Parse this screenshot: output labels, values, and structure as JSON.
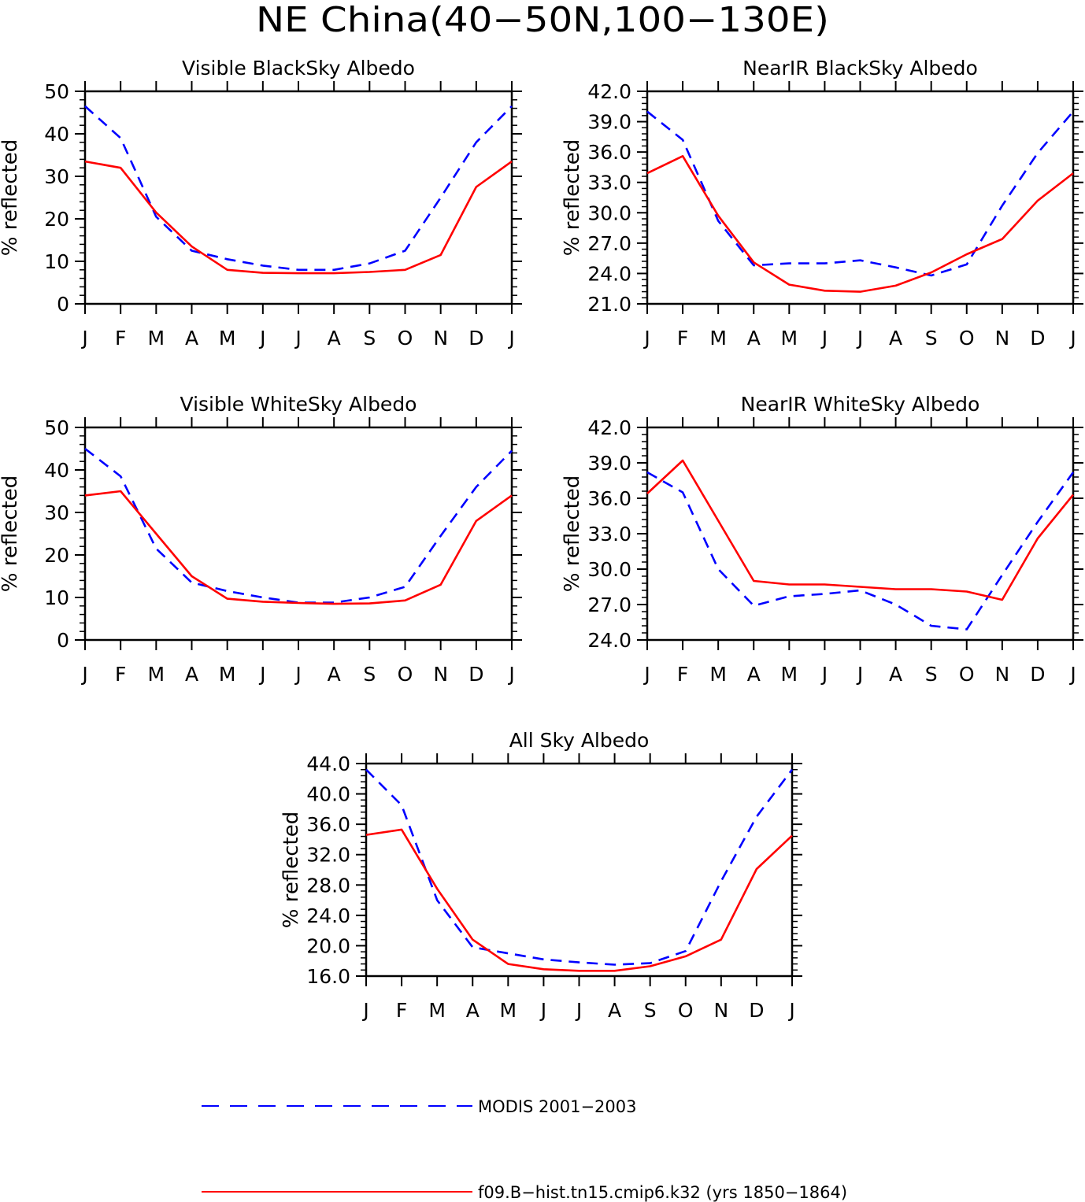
{
  "figure": {
    "title": "NE China(40−50N,100−130E)"
  },
  "colors": {
    "modis": "#0000ff",
    "model": "#ff0000",
    "axis": "#000000"
  },
  "legend": {
    "placement": "bottom",
    "items": [
      {
        "label": "MODIS 2001−2003",
        "style": "dashed",
        "color": "#0000ff"
      },
      {
        "label": "f09.B−hist.tn15.cmip6.k32 (yrs 1850−1864)",
        "style": "solid",
        "color": "#ff0000"
      }
    ]
  },
  "chart_data": [
    {
      "type": "line",
      "title": "Visible BlackSky Albedo",
      "ylabel": "% reflected",
      "categories": [
        "J",
        "F",
        "M",
        "A",
        "M",
        "J",
        "J",
        "A",
        "S",
        "O",
        "N",
        "D",
        "J"
      ],
      "ylim": [
        0,
        50
      ],
      "yticks": [
        "0",
        "10",
        "20",
        "30",
        "40",
        "50"
      ],
      "series": [
        {
          "name": "MODIS 2001−2003",
          "style": "dashed",
          "values": [
            46.5,
            39.0,
            20.5,
            12.5,
            10.5,
            9.0,
            8.0,
            8.0,
            9.5,
            12.5,
            25.0,
            38.0,
            46.5
          ]
        },
        {
          "name": "f09.B−hist.tn15.cmip6.k32 (yrs 1850−1864)",
          "style": "solid",
          "values": [
            33.5,
            32.0,
            21.5,
            13.5,
            8.0,
            7.3,
            7.2,
            7.2,
            7.5,
            8.0,
            11.5,
            27.5,
            33.5
          ]
        }
      ]
    },
    {
      "type": "line",
      "title": "NearIR BlackSky Albedo",
      "ylabel": "% reflected",
      "categories": [
        "J",
        "F",
        "M",
        "A",
        "M",
        "J",
        "J",
        "A",
        "S",
        "O",
        "N",
        "D",
        "J"
      ],
      "ylim": [
        21,
        42
      ],
      "yticks": [
        "21.0",
        "24.0",
        "27.0",
        "30.0",
        "33.0",
        "36.0",
        "39.0",
        "42.0"
      ],
      "series": [
        {
          "name": "MODIS 2001−2003",
          "style": "dashed",
          "values": [
            40.0,
            37.2,
            29.2,
            24.8,
            25.0,
            25.0,
            25.3,
            24.6,
            23.8,
            24.9,
            30.7,
            35.9,
            40.0
          ]
        },
        {
          "name": "f09.B−hist.tn15.cmip6.k32 (yrs 1850−1864)",
          "style": "solid",
          "values": [
            33.9,
            35.6,
            29.7,
            25.1,
            22.9,
            22.3,
            22.2,
            22.8,
            24.1,
            25.9,
            27.4,
            31.2,
            33.9
          ]
        }
      ]
    },
    {
      "type": "line",
      "title": "Visible WhiteSky Albedo",
      "ylabel": "% reflected",
      "categories": [
        "J",
        "F",
        "M",
        "A",
        "M",
        "J",
        "J",
        "A",
        "S",
        "O",
        "N",
        "D",
        "J"
      ],
      "ylim": [
        0,
        50
      ],
      "yticks": [
        "0",
        "10",
        "20",
        "30",
        "40",
        "50"
      ],
      "series": [
        {
          "name": "MODIS 2001−2003",
          "style": "dashed",
          "values": [
            45.0,
            38.5,
            21.5,
            13.5,
            11.5,
            10.0,
            8.8,
            8.8,
            10.0,
            12.5,
            24.5,
            36.0,
            44.5
          ]
        },
        {
          "name": "f09.B−hist.tn15.cmip6.k32 (yrs 1850−1864)",
          "style": "solid",
          "values": [
            34.0,
            35.0,
            25.0,
            15.0,
            9.7,
            9.0,
            8.7,
            8.5,
            8.6,
            9.3,
            13.0,
            28.0,
            34.0
          ]
        }
      ]
    },
    {
      "type": "line",
      "title": "NearIR WhiteSky Albedo",
      "ylabel": "% reflected",
      "categories": [
        "J",
        "F",
        "M",
        "A",
        "M",
        "J",
        "J",
        "A",
        "S",
        "O",
        "N",
        "D",
        "J"
      ],
      "ylim": [
        24,
        42
      ],
      "yticks": [
        "24.0",
        "27.0",
        "30.0",
        "33.0",
        "36.0",
        "39.0",
        "42.0"
      ],
      "series": [
        {
          "name": "MODIS 2001−2003",
          "style": "dashed",
          "values": [
            38.2,
            36.5,
            30.0,
            26.9,
            27.7,
            27.9,
            28.2,
            27.0,
            25.2,
            24.9,
            29.5,
            34.0,
            38.2
          ]
        },
        {
          "name": "f09.B−hist.tn15.cmip6.k32 (yrs 1850−1864)",
          "style": "solid",
          "values": [
            36.4,
            39.2,
            34.1,
            29.0,
            28.7,
            28.7,
            28.5,
            28.3,
            28.3,
            28.1,
            27.4,
            32.6,
            36.3
          ]
        }
      ]
    },
    {
      "type": "line",
      "title": "All Sky Albedo",
      "ylabel": "% reflected",
      "categories": [
        "J",
        "F",
        "M",
        "A",
        "M",
        "J",
        "J",
        "A",
        "S",
        "O",
        "N",
        "D",
        "J"
      ],
      "ylim": [
        16,
        44
      ],
      "yticks": [
        "16.0",
        "20.0",
        "24.0",
        "28.0",
        "32.0",
        "36.0",
        "40.0",
        "44.0"
      ],
      "series": [
        {
          "name": "MODIS 2001−2003",
          "style": "dashed",
          "values": [
            43.2,
            38.5,
            26.0,
            19.8,
            19.0,
            18.2,
            17.8,
            17.5,
            17.7,
            19.3,
            28.5,
            37.0,
            43.2
          ]
        },
        {
          "name": "f09.B−hist.tn15.cmip6.k32 (yrs 1850−1864)",
          "style": "solid",
          "values": [
            34.6,
            35.3,
            27.5,
            20.8,
            17.6,
            16.9,
            16.7,
            16.7,
            17.3,
            18.6,
            20.8,
            30.1,
            34.5
          ]
        }
      ]
    }
  ]
}
